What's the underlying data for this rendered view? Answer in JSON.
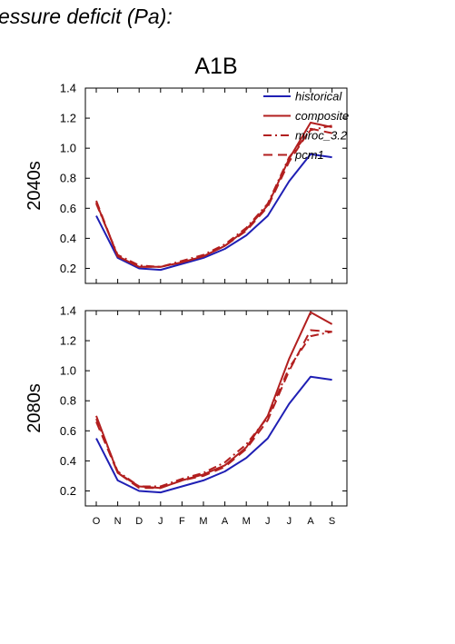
{
  "heading": "essure deficit (Pa):",
  "title": "A1B",
  "colors": {
    "historical": "#1f1fb4",
    "future": "#b21f1f",
    "axis": "#000000"
  },
  "chart_data": {
    "type": "line",
    "months": [
      "O",
      "N",
      "D",
      "J",
      "F",
      "M",
      "A",
      "M",
      "J",
      "J",
      "A",
      "S"
    ],
    "ylim": [
      0.1,
      1.4
    ],
    "yticks": [
      "0.2",
      "0.4",
      "0.6",
      "0.8",
      "1.0",
      "1.2",
      "1.4"
    ],
    "legend": {
      "position": "top-right",
      "entries": [
        {
          "name": "historical",
          "style": "solid",
          "color": "#1f1fb4"
        },
        {
          "name": "composite",
          "style": "solid",
          "color": "#b21f1f"
        },
        {
          "name": "miroc_3.2",
          "style": "dashdot",
          "color": "#b21f1f"
        },
        {
          "name": "pcm1",
          "style": "dashed",
          "color": "#b21f1f"
        }
      ]
    },
    "panels": [
      {
        "label": "2040s",
        "series": [
          {
            "name": "historical",
            "values": [
              0.55,
              0.27,
              0.2,
              0.19,
              0.23,
              0.27,
              0.33,
              0.42,
              0.55,
              0.78,
              0.96,
              0.94
            ]
          },
          {
            "name": "composite",
            "values": [
              0.64,
              0.28,
              0.21,
              0.21,
              0.24,
              0.28,
              0.35,
              0.46,
              0.62,
              0.93,
              1.17,
              1.14
            ]
          },
          {
            "name": "miroc_3.2",
            "values": [
              0.63,
              0.29,
              0.22,
              0.21,
              0.25,
              0.29,
              0.36,
              0.47,
              0.63,
              0.94,
              1.12,
              1.15
            ]
          },
          {
            "name": "pcm1",
            "values": [
              0.65,
              0.28,
              0.21,
              0.21,
              0.24,
              0.28,
              0.35,
              0.45,
              0.61,
              0.91,
              1.13,
              1.1
            ]
          }
        ]
      },
      {
        "label": "2080s",
        "series": [
          {
            "name": "historical",
            "values": [
              0.55,
              0.27,
              0.2,
              0.19,
              0.23,
              0.27,
              0.33,
              0.42,
              0.55,
              0.78,
              0.96,
              0.94
            ]
          },
          {
            "name": "composite",
            "values": [
              0.7,
              0.32,
              0.23,
              0.22,
              0.27,
              0.31,
              0.37,
              0.49,
              0.7,
              1.08,
              1.39,
              1.31
            ]
          },
          {
            "name": "miroc_3.2",
            "values": [
              0.68,
              0.33,
              0.23,
              0.23,
              0.28,
              0.32,
              0.39,
              0.51,
              0.69,
              1.02,
              1.23,
              1.26
            ]
          },
          {
            "name": "pcm1",
            "values": [
              0.66,
              0.32,
              0.22,
              0.22,
              0.27,
              0.3,
              0.36,
              0.48,
              0.67,
              1.0,
              1.27,
              1.26
            ]
          }
        ]
      }
    ]
  }
}
